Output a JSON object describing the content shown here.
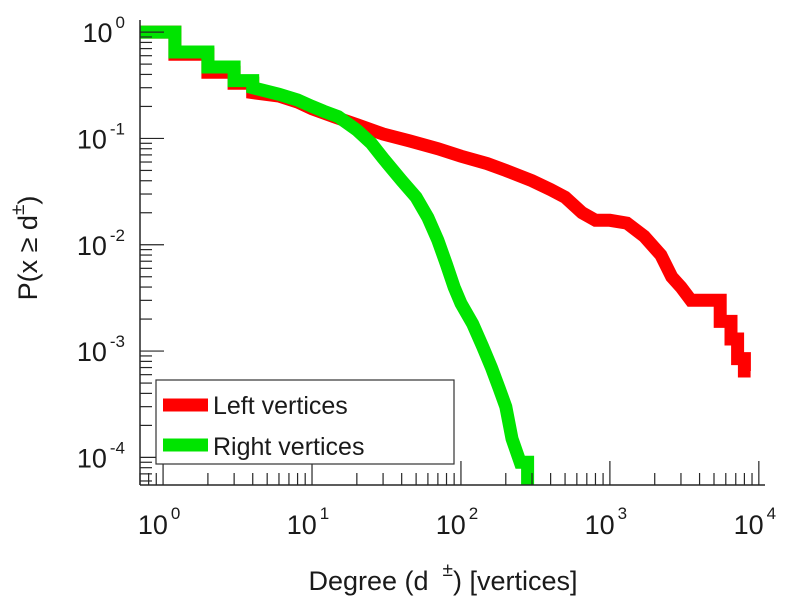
{
  "chart_data": {
    "type": "line",
    "step": true,
    "scale": {
      "x": "log",
      "y": "log"
    },
    "xlabel": "Degree (d ±) [vertices]",
    "xlabel_parts": {
      "before": "Degree (d",
      "sup": "±",
      "after": ") [vertices]"
    },
    "ylabel": "P(x ≥ d±)",
    "ylabel_parts": {
      "before": "P(x ≥ d",
      "sup": "±",
      "after": ")"
    },
    "xlim": [
      0.7,
      11000
    ],
    "ylim": [
      5.5e-05,
      1.3
    ],
    "x_ticks": [
      {
        "value": 1,
        "base": "10",
        "exp": "0"
      },
      {
        "value": 10,
        "base": "10",
        "exp": "1"
      },
      {
        "value": 100,
        "base": "10",
        "exp": "2"
      },
      {
        "value": 1000,
        "base": "10",
        "exp": "3"
      },
      {
        "value": 10000,
        "base": "10",
        "exp": "4"
      }
    ],
    "y_ticks": [
      {
        "value": 1,
        "base": "10",
        "exp": "0"
      },
      {
        "value": 0.1,
        "base": "10",
        "exp": "-1"
      },
      {
        "value": 0.01,
        "base": "10",
        "exp": "-2"
      },
      {
        "value": 0.001,
        "base": "10",
        "exp": "-3"
      },
      {
        "value": 0.0001,
        "base": "10",
        "exp": "-4"
      }
    ],
    "grid": false,
    "legend_position": "bottom-left",
    "series": [
      {
        "name": "Left vertices",
        "color": "#ff0000",
        "points": [
          [
            0.7,
            1.0
          ],
          [
            1.2,
            1.0
          ],
          [
            1.2,
            0.62
          ],
          [
            2.0,
            0.62
          ],
          [
            2.0,
            0.42
          ],
          [
            3.0,
            0.42
          ],
          [
            3.0,
            0.33
          ],
          [
            4.0,
            0.33
          ],
          [
            4.0,
            0.27
          ],
          [
            6.0,
            0.25
          ],
          [
            8.0,
            0.22
          ],
          [
            10.0,
            0.19
          ],
          [
            14.0,
            0.16
          ],
          [
            20.0,
            0.135
          ],
          [
            30.0,
            0.11
          ],
          [
            45.0,
            0.095
          ],
          [
            70.0,
            0.08
          ],
          [
            100.0,
            0.068
          ],
          [
            150.0,
            0.058
          ],
          [
            200.0,
            0.05
          ],
          [
            300.0,
            0.04
          ],
          [
            400.0,
            0.033
          ],
          [
            500.0,
            0.028
          ],
          [
            650.0,
            0.02
          ],
          [
            800.0,
            0.017
          ],
          [
            1000.0,
            0.017
          ],
          [
            1300.0,
            0.016
          ],
          [
            1700.0,
            0.012
          ],
          [
            2200.0,
            0.008
          ],
          [
            2600.0,
            0.005
          ],
          [
            3000.0,
            0.004
          ],
          [
            3500.0,
            0.003
          ],
          [
            5500.0,
            0.003
          ],
          [
            5500.0,
            0.0019
          ],
          [
            6500.0,
            0.0019
          ],
          [
            6500.0,
            0.0013
          ],
          [
            7200.0,
            0.0013
          ],
          [
            7200.0,
            0.00085
          ],
          [
            8000.0,
            0.00085
          ],
          [
            8000.0,
            0.00065
          ],
          [
            8800.0,
            0.00065
          ]
        ]
      },
      {
        "name": "Right vertices",
        "color": "#00e400",
        "points": [
          [
            0.7,
            1.0
          ],
          [
            1.2,
            1.0
          ],
          [
            1.2,
            0.65
          ],
          [
            2.0,
            0.65
          ],
          [
            2.0,
            0.47
          ],
          [
            3.0,
            0.47
          ],
          [
            3.0,
            0.35
          ],
          [
            4.0,
            0.35
          ],
          [
            4.0,
            0.3
          ],
          [
            6.0,
            0.26
          ],
          [
            8.0,
            0.23
          ],
          [
            10.0,
            0.2
          ],
          [
            12.0,
            0.18
          ],
          [
            15.0,
            0.16
          ],
          [
            20.0,
            0.12
          ],
          [
            25.0,
            0.09
          ],
          [
            30.0,
            0.065
          ],
          [
            40.0,
            0.04
          ],
          [
            50.0,
            0.028
          ],
          [
            60.0,
            0.018
          ],
          [
            70.0,
            0.011
          ],
          [
            80.0,
            0.0065
          ],
          [
            90.0,
            0.004
          ],
          [
            100.0,
            0.0028
          ],
          [
            120.0,
            0.0018
          ],
          [
            140.0,
            0.0011
          ],
          [
            160.0,
            0.0007
          ],
          [
            180.0,
            0.00045
          ],
          [
            200.0,
            0.0003
          ],
          [
            220.0,
            0.00015
          ],
          [
            250.0,
            9e-05
          ],
          [
            280.0,
            9e-05
          ],
          [
            280.0,
            5.5e-05
          ]
        ]
      }
    ]
  }
}
